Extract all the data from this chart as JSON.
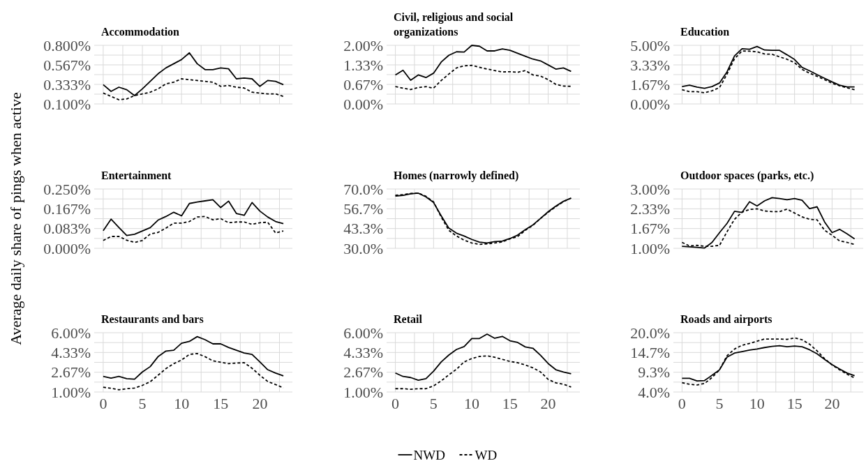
{
  "chart_data": [
    {
      "type": "line",
      "title": "Accommodation",
      "x": [
        0,
        1,
        2,
        3,
        4,
        5,
        6,
        7,
        8,
        9,
        10,
        11,
        12,
        13,
        14,
        15,
        16,
        17,
        18,
        19,
        20,
        21,
        22,
        23
      ],
      "xlim": [
        -1.15,
        24.15
      ],
      "xticks": [
        0,
        {
          "value": 2.5,
          "label": null
        },
        5,
        {
          "value": 7.5,
          "label": null
        },
        10,
        {
          "value": 12.5,
          "label": null
        },
        15,
        {
          "value": 17.5,
          "label": null
        },
        20,
        {
          "value": 22.5,
          "label": null
        }
      ],
      "ylim": [
        0.1,
        0.8
      ],
      "yticks": [
        {
          "value": 0.1,
          "label": "0.100%"
        },
        {
          "value": 0.2167,
          "label": null
        },
        {
          "value": 0.3333,
          "label": "0.333%"
        },
        {
          "value": 0.45,
          "label": null
        },
        {
          "value": 0.5667,
          "label": "0.567%"
        },
        {
          "value": 0.6833,
          "label": null
        },
        {
          "value": 0.8,
          "label": "0.800%"
        }
      ],
      "grid": true,
      "tick_labels": "y",
      "series": [
        {
          "color": "#000000",
          "line_style": "solid",
          "values": [
            0.33,
            0.25,
            0.3,
            0.27,
            0.2,
            0.28,
            0.37,
            0.46,
            0.53,
            0.58,
            0.63,
            0.71,
            0.58,
            0.51,
            0.51,
            0.53,
            0.52,
            0.4,
            0.41,
            0.4,
            0.31,
            0.38,
            0.37,
            0.33
          ]
        },
        {
          "color": "#000000",
          "line_style": "dashed",
          "values": [
            0.23,
            0.19,
            0.15,
            0.16,
            0.2,
            0.22,
            0.24,
            0.28,
            0.34,
            0.36,
            0.4,
            0.39,
            0.38,
            0.37,
            0.36,
            0.31,
            0.32,
            0.3,
            0.29,
            0.24,
            0.23,
            0.22,
            0.22,
            0.19
          ]
        }
      ]
    },
    {
      "type": "line",
      "title": "Civil, religious and social organizations",
      "x": [
        0,
        1,
        2,
        3,
        4,
        5,
        6,
        7,
        8,
        9,
        10,
        11,
        12,
        13,
        14,
        15,
        16,
        17,
        18,
        19,
        20,
        21,
        22,
        23
      ],
      "xlim": [
        -1.15,
        24.15
      ],
      "xticks": [
        0,
        {
          "value": 2.5,
          "label": null
        },
        5,
        {
          "value": 7.5,
          "label": null
        },
        10,
        {
          "value": 12.5,
          "label": null
        },
        15,
        {
          "value": 17.5,
          "label": null
        },
        20,
        {
          "value": 22.5,
          "label": null
        }
      ],
      "ylim": [
        0,
        2
      ],
      "yticks": [
        {
          "value": 0,
          "label": "0.00%"
        },
        {
          "value": 0.3333,
          "label": null
        },
        {
          "value": 0.6667,
          "label": "0.67%"
        },
        {
          "value": 1,
          "label": null
        },
        {
          "value": 1.3333,
          "label": "1.33%"
        },
        {
          "value": 1.6667,
          "label": null
        },
        {
          "value": 2,
          "label": "2.00%"
        }
      ],
      "grid": true,
      "tick_labels": "y",
      "series": [
        {
          "color": "#000000",
          "line_style": "solid",
          "values": [
            0.99,
            1.15,
            0.81,
            0.99,
            0.9,
            1.05,
            1.43,
            1.66,
            1.78,
            1.77,
            2.0,
            1.97,
            1.81,
            1.81,
            1.88,
            1.83,
            1.73,
            1.63,
            1.53,
            1.47,
            1.33,
            1.19,
            1.23,
            1.11
          ]
        },
        {
          "color": "#000000",
          "line_style": "dashed",
          "values": [
            0.59,
            0.54,
            0.49,
            0.56,
            0.59,
            0.54,
            0.8,
            1.02,
            1.23,
            1.3,
            1.32,
            1.25,
            1.19,
            1.14,
            1.09,
            1.1,
            1.08,
            1.14,
            0.99,
            0.95,
            0.83,
            0.67,
            0.61,
            0.6
          ]
        }
      ]
    },
    {
      "type": "line",
      "title": "Education",
      "x": [
        0,
        1,
        2,
        3,
        4,
        5,
        6,
        7,
        8,
        9,
        10,
        11,
        12,
        13,
        14,
        15,
        16,
        17,
        18,
        19,
        20,
        21,
        22,
        23
      ],
      "xlim": [
        -1.15,
        24.15
      ],
      "xticks": [
        0,
        {
          "value": 2.5,
          "label": null
        },
        5,
        {
          "value": 7.5,
          "label": null
        },
        10,
        {
          "value": 12.5,
          "label": null
        },
        15,
        {
          "value": 17.5,
          "label": null
        },
        20,
        {
          "value": 22.5,
          "label": null
        }
      ],
      "ylim": [
        0,
        5
      ],
      "yticks": [
        {
          "value": 0,
          "label": "0.00%"
        },
        {
          "value": 0.8333,
          "label": null
        },
        {
          "value": 1.6667,
          "label": "1.67%"
        },
        {
          "value": 2.5,
          "label": null
        },
        {
          "value": 3.3333,
          "label": "3.33%"
        },
        {
          "value": 4.1667,
          "label": null
        },
        {
          "value": 5,
          "label": "5.00%"
        }
      ],
      "grid": true,
      "tick_labels": "y",
      "series": [
        {
          "color": "#000000",
          "line_style": "solid",
          "values": [
            1.48,
            1.6,
            1.43,
            1.33,
            1.48,
            1.79,
            2.74,
            4.1,
            4.71,
            4.67,
            4.9,
            4.6,
            4.57,
            4.57,
            4.19,
            3.79,
            3.12,
            2.83,
            2.5,
            2.19,
            1.88,
            1.6,
            1.45,
            1.45
          ]
        },
        {
          "color": "#000000",
          "line_style": "dashed",
          "values": [
            1.21,
            1.05,
            1.05,
            0.95,
            1.12,
            1.4,
            2.55,
            3.86,
            4.52,
            4.5,
            4.45,
            4.26,
            4.24,
            4.02,
            3.81,
            3.52,
            2.95,
            2.62,
            2.36,
            2.07,
            1.76,
            1.55,
            1.38,
            1.21
          ]
        }
      ]
    },
    {
      "type": "line",
      "title": "Entertainment",
      "ylabel": "Average daily share of pings when active",
      "x": [
        0,
        1,
        2,
        3,
        4,
        5,
        6,
        7,
        8,
        9,
        10,
        11,
        12,
        13,
        14,
        15,
        16,
        17,
        18,
        19,
        20,
        21,
        22,
        23
      ],
      "xlim": [
        -1.15,
        24.15
      ],
      "xticks": [
        0,
        {
          "value": 2.5,
          "label": null
        },
        5,
        {
          "value": 7.5,
          "label": null
        },
        10,
        {
          "value": 12.5,
          "label": null
        },
        15,
        {
          "value": 17.5,
          "label": null
        },
        20,
        {
          "value": 22.5,
          "label": null
        }
      ],
      "ylim": [
        0,
        0.25
      ],
      "yticks": [
        {
          "value": 0,
          "label": "0.000%"
        },
        {
          "value": 0.0417,
          "label": null
        },
        {
          "value": 0.0833,
          "label": "0.083%"
        },
        {
          "value": 0.125,
          "label": null
        },
        {
          "value": 0.1667,
          "label": "0.167%"
        },
        {
          "value": 0.2083,
          "label": null
        },
        {
          "value": 0.25,
          "label": "0.250%"
        }
      ],
      "grid": true,
      "tick_labels": "y",
      "series": [
        {
          "color": "#000000",
          "line_style": "solid",
          "values": [
            0.074,
            0.123,
            0.088,
            0.054,
            0.059,
            0.073,
            0.087,
            0.119,
            0.134,
            0.152,
            0.137,
            0.189,
            0.195,
            0.2,
            0.205,
            0.172,
            0.199,
            0.147,
            0.139,
            0.193,
            0.157,
            0.132,
            0.113,
            0.104
          ]
        },
        {
          "color": "#000000",
          "line_style": "dashed",
          "values": [
            0.033,
            0.05,
            0.05,
            0.034,
            0.025,
            0.033,
            0.06,
            0.067,
            0.085,
            0.106,
            0.106,
            0.113,
            0.132,
            0.134,
            0.12,
            0.125,
            0.108,
            0.111,
            0.111,
            0.101,
            0.108,
            0.11,
            0.065,
            0.073
          ]
        }
      ]
    },
    {
      "type": "line",
      "title": "Homes (narrowly defined)",
      "x": [
        0,
        1,
        2,
        3,
        4,
        5,
        6,
        7,
        8,
        9,
        10,
        11,
        12,
        13,
        14,
        15,
        16,
        17,
        18,
        19,
        20,
        21,
        22,
        23
      ],
      "xlim": [
        -1.15,
        24.15
      ],
      "xticks": [
        0,
        {
          "value": 2.5,
          "label": null
        },
        5,
        {
          "value": 7.5,
          "label": null
        },
        10,
        {
          "value": 12.5,
          "label": null
        },
        15,
        {
          "value": 17.5,
          "label": null
        },
        20,
        {
          "value": 22.5,
          "label": null
        }
      ],
      "ylim": [
        30,
        70
      ],
      "yticks": [
        {
          "value": 30,
          "label": "30.0%"
        },
        {
          "value": 36.67,
          "label": null
        },
        {
          "value": 43.33,
          "label": "43.3%"
        },
        {
          "value": 50,
          "label": null
        },
        {
          "value": 56.67,
          "label": "56.7%"
        },
        {
          "value": 63.33,
          "label": null
        },
        {
          "value": 70,
          "label": "70.0%"
        }
      ],
      "grid": true,
      "tick_labels": "y",
      "series": [
        {
          "color": "#000000",
          "line_style": "solid",
          "values": [
            65.3,
            65.7,
            66.8,
            67.2,
            64.7,
            60.9,
            51.9,
            43.6,
            40.2,
            38.3,
            36.0,
            34.2,
            33.6,
            34.5,
            34.9,
            36.6,
            38.9,
            42.6,
            45.8,
            50.2,
            54.7,
            58.5,
            61.7,
            63.9
          ]
        },
        {
          "color": "#000000",
          "line_style": "dashed",
          "values": [
            65.8,
            66.2,
            67.0,
            67.2,
            65.1,
            61.3,
            51.1,
            42.1,
            38.3,
            35.5,
            33.6,
            32.6,
            33.0,
            33.6,
            34.3,
            36.4,
            37.9,
            42.1,
            45.5,
            50.2,
            54.3,
            58.1,
            61.5,
            63.9
          ]
        }
      ]
    },
    {
      "type": "line",
      "title": "Outdoor spaces (parks, etc.)",
      "x": [
        0,
        1,
        2,
        3,
        4,
        5,
        6,
        7,
        8,
        9,
        10,
        11,
        12,
        13,
        14,
        15,
        16,
        17,
        18,
        19,
        20,
        21,
        22,
        23
      ],
      "xlim": [
        -1.15,
        24.15
      ],
      "xticks": [
        0,
        {
          "value": 2.5,
          "label": null
        },
        5,
        {
          "value": 7.5,
          "label": null
        },
        10,
        {
          "value": 12.5,
          "label": null
        },
        15,
        {
          "value": 17.5,
          "label": null
        },
        20,
        {
          "value": 22.5,
          "label": null
        }
      ],
      "ylim": [
        1,
        3
      ],
      "yticks": [
        {
          "value": 1,
          "label": "1.00%"
        },
        {
          "value": 1.3333,
          "label": null
        },
        {
          "value": 1.6667,
          "label": "1.67%"
        },
        {
          "value": 2,
          "label": null
        },
        {
          "value": 2.3333,
          "label": "2.33%"
        },
        {
          "value": 2.6667,
          "label": null
        },
        {
          "value": 3,
          "label": "3.00%"
        }
      ],
      "grid": true,
      "tick_labels": "y",
      "series": [
        {
          "color": "#000000",
          "line_style": "solid",
          "values": [
            1.07,
            1.05,
            1.03,
            1.01,
            1.2,
            1.53,
            1.84,
            2.25,
            2.21,
            2.57,
            2.43,
            2.6,
            2.71,
            2.68,
            2.64,
            2.68,
            2.62,
            2.34,
            2.4,
            1.89,
            1.53,
            1.64,
            1.49,
            1.32
          ]
        },
        {
          "color": "#000000",
          "line_style": "dashed",
          "values": [
            1.2,
            1.08,
            1.1,
            1.07,
            1.07,
            1.1,
            1.56,
            1.98,
            2.22,
            2.31,
            2.33,
            2.26,
            2.24,
            2.24,
            2.32,
            2.19,
            2.06,
            1.98,
            1.96,
            1.61,
            1.44,
            1.25,
            1.2,
            1.13
          ]
        }
      ]
    },
    {
      "type": "line",
      "title": "Restaurants and bars",
      "x": [
        0,
        1,
        2,
        3,
        4,
        5,
        6,
        7,
        8,
        9,
        10,
        11,
        12,
        13,
        14,
        15,
        16,
        17,
        18,
        19,
        20,
        21,
        22,
        23
      ],
      "xlim": [
        -1.15,
        24.15
      ],
      "xticks": [
        0,
        {
          "value": 2.5,
          "label": null
        },
        5,
        {
          "value": 7.5,
          "label": null
        },
        10,
        {
          "value": 12.5,
          "label": null
        },
        15,
        {
          "value": 17.5,
          "label": null
        },
        20,
        {
          "value": 22.5,
          "label": null
        }
      ],
      "ylim": [
        1,
        6
      ],
      "yticks": [
        {
          "value": 1,
          "label": "1.00%"
        },
        {
          "value": 1.8333,
          "label": null
        },
        {
          "value": 2.6667,
          "label": "2.67%"
        },
        {
          "value": 3.5,
          "label": null
        },
        {
          "value": 4.3333,
          "label": "4.33%"
        },
        {
          "value": 5.1667,
          "label": null
        },
        {
          "value": 6,
          "label": "6.00%"
        }
      ],
      "grid": true,
      "series": [
        {
          "color": "#000000",
          "line_style": "solid",
          "values": [
            2.31,
            2.17,
            2.31,
            2.13,
            2.08,
            2.69,
            3.14,
            3.98,
            4.45,
            4.52,
            5.11,
            5.27,
            5.67,
            5.41,
            5.06,
            5.06,
            4.76,
            4.52,
            4.29,
            4.17,
            3.54,
            2.88,
            2.6,
            2.36
          ]
        },
        {
          "color": "#000000",
          "line_style": "dashed",
          "values": [
            1.4,
            1.31,
            1.19,
            1.28,
            1.33,
            1.56,
            1.87,
            2.41,
            2.97,
            3.39,
            3.7,
            4.17,
            4.24,
            3.98,
            3.63,
            3.51,
            3.39,
            3.44,
            3.47,
            3.0,
            2.41,
            1.89,
            1.63,
            1.35
          ]
        }
      ]
    },
    {
      "type": "line",
      "title": "Retail",
      "legend": "bottom",
      "x": [
        0,
        1,
        2,
        3,
        4,
        5,
        6,
        7,
        8,
        9,
        10,
        11,
        12,
        13,
        14,
        15,
        16,
        17,
        18,
        19,
        20,
        21,
        22,
        23
      ],
      "xlim": [
        -1.15,
        24.15
      ],
      "xticks": [
        0,
        {
          "value": 2.5,
          "label": null
        },
        5,
        {
          "value": 7.5,
          "label": null
        },
        10,
        {
          "value": 12.5,
          "label": null
        },
        15,
        {
          "value": 17.5,
          "label": null
        },
        20,
        {
          "value": 22.5,
          "label": null
        }
      ],
      "ylim": [
        1,
        6
      ],
      "yticks": [
        {
          "value": 1,
          "label": "1.00%"
        },
        {
          "value": 1.8333,
          "label": null
        },
        {
          "value": 2.6667,
          "label": "2.67%"
        },
        {
          "value": 3.5,
          "label": null
        },
        {
          "value": 4.3333,
          "label": "4.33%"
        },
        {
          "value": 5.1667,
          "label": null
        },
        {
          "value": 6,
          "label": "6.00%"
        }
      ],
      "grid": true,
      "series": [
        {
          "name": "NWD",
          "color": "#000000",
          "line_style": "solid",
          "values": [
            2.6,
            2.31,
            2.22,
            1.99,
            2.13,
            2.76,
            3.54,
            4.12,
            4.59,
            4.83,
            5.51,
            5.51,
            5.88,
            5.53,
            5.69,
            5.32,
            5.18,
            4.8,
            4.69,
            4.1,
            3.4,
            2.88,
            2.69,
            2.53
          ]
        },
        {
          "name": "WD",
          "color": "#000000",
          "line_style": "dashed",
          "values": [
            1.28,
            1.28,
            1.23,
            1.28,
            1.28,
            1.52,
            1.94,
            2.45,
            2.92,
            3.54,
            3.82,
            4.0,
            4.05,
            3.93,
            3.75,
            3.58,
            3.47,
            3.28,
            3.04,
            2.69,
            2.06,
            1.77,
            1.66,
            1.42
          ]
        }
      ]
    },
    {
      "type": "line",
      "title": "Roads and airports",
      "x": [
        0,
        1,
        2,
        3,
        4,
        5,
        6,
        7,
        8,
        9,
        10,
        11,
        12,
        13,
        14,
        15,
        16,
        17,
        18,
        19,
        20,
        21,
        22,
        23
      ],
      "xlim": [
        -1.15,
        24.15
      ],
      "xticks": [
        0,
        {
          "value": 2.5,
          "label": null
        },
        5,
        {
          "value": 7.5,
          "label": null
        },
        10,
        {
          "value": 12.5,
          "label": null
        },
        15,
        {
          "value": 17.5,
          "label": null
        },
        20,
        {
          "value": 22.5,
          "label": null
        }
      ],
      "ylim": [
        4,
        20
      ],
      "yticks": [
        {
          "value": 4,
          "label": "4.0%"
        },
        {
          "value": 6.6667,
          "label": null
        },
        {
          "value": 9.3333,
          "label": "9.3%"
        },
        {
          "value": 12,
          "label": null
        },
        {
          "value": 14.6667,
          "label": "14.7%"
        },
        {
          "value": 17.3333,
          "label": null
        },
        {
          "value": 20,
          "label": "20.0%"
        }
      ],
      "grid": true,
      "series": [
        {
          "color": "#000000",
          "line_style": "solid",
          "values": [
            7.7,
            7.7,
            7.0,
            7.1,
            8.5,
            10.0,
            13.4,
            14.5,
            14.9,
            15.3,
            15.6,
            16.0,
            16.3,
            16.5,
            16.2,
            16.4,
            16.2,
            15.4,
            14.3,
            12.8,
            11.4,
            10.2,
            9.1,
            8.4
          ]
        },
        {
          "color": "#000000",
          "line_style": "dashed",
          "values": [
            6.5,
            6.1,
            5.9,
            6.3,
            7.9,
            10.0,
            13.8,
            15.6,
            16.6,
            17.1,
            17.7,
            18.3,
            18.3,
            18.3,
            18.2,
            18.6,
            18.1,
            16.9,
            15.1,
            13.0,
            11.3,
            10.0,
            8.8,
            7.8
          ]
        }
      ]
    }
  ]
}
